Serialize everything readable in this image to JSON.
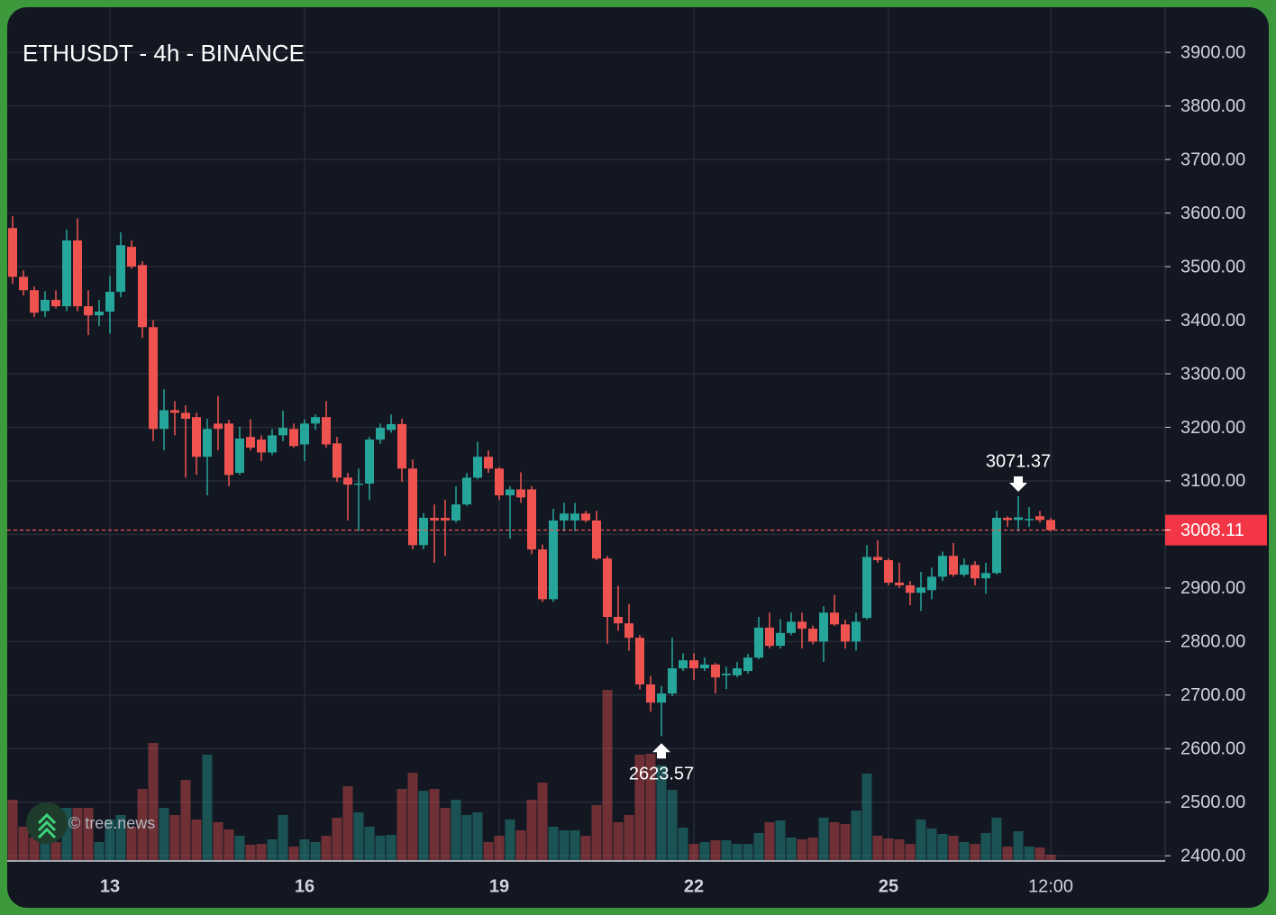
{
  "chart_data": {
    "type": "candlestick",
    "title": "ETHUSDT - 4h - BINANCE",
    "watermark": "© tree.news",
    "categories": [
      null,
      null,
      null,
      null,
      null,
      null,
      null,
      null,
      null,
      "13",
      null,
      null,
      null,
      null,
      null,
      null,
      null,
      null,
      null,
      null,
      null,
      null,
      null,
      null,
      null,
      null,
      null,
      "16",
      null,
      null,
      null,
      null,
      null,
      null,
      null,
      null,
      null,
      null,
      null,
      null,
      null,
      null,
      null,
      null,
      null,
      "19",
      null,
      null,
      null,
      null,
      null,
      null,
      null,
      null,
      null,
      null,
      null,
      null,
      null,
      null,
      null,
      null,
      null,
      "22",
      null,
      null,
      null,
      null,
      null,
      null,
      null,
      null,
      null,
      null,
      null,
      null,
      null,
      null,
      null,
      null,
      null,
      "25",
      null,
      null,
      null,
      null,
      null,
      null,
      null,
      null,
      null,
      null,
      null,
      null,
      null,
      null,
      "12:00"
    ],
    "open": [
      3572,
      3481,
      3456,
      3417,
      3438,
      3426,
      3549,
      3426,
      3409,
      3416,
      3453,
      3537,
      3503,
      3387,
      3197,
      3232,
      3227,
      3219,
      3145,
      3207,
      3207,
      3115,
      3182,
      3177,
      3153,
      3185,
      3197,
      3168,
      3207,
      3219,
      3170,
      3106,
      3093,
      3095,
      3177,
      3195,
      3206,
      3123,
      2980,
      3031,
      3031,
      3026,
      3056,
      3106,
      3145,
      3123,
      3073,
      3084,
      3084,
      2972,
      2879,
      3026,
      3026,
      3039,
      3026,
      2955,
      2846,
      2834,
      2807,
      2720,
      2686,
      2703,
      2750,
      2765,
      2750,
      2757,
      2737,
      2737,
      2745,
      2770,
      2826,
      2792,
      2816,
      2837,
      2824,
      2800,
      2854,
      2832,
      2800,
      2844,
      2958,
      2952,
      2910,
      2905,
      2891,
      2896,
      2921,
      2960,
      2925,
      2943,
      2918,
      2928,
      3031,
      3027,
      3027,
      3034,
      3027
    ],
    "high": [
      3594,
      3493,
      3463,
      3454,
      3456,
      3569,
      3590,
      3456,
      3438,
      3482,
      3564,
      3549,
      3510,
      3400,
      3271,
      3249,
      3241,
      3227,
      3216,
      3258,
      3214,
      3201,
      3215,
      3185,
      3197,
      3231,
      3207,
      3215,
      3224,
      3249,
      3182,
      3115,
      3123,
      3182,
      3207,
      3224,
      3216,
      3140,
      3040,
      3056,
      3065,
      3090,
      3115,
      3173,
      3157,
      3126,
      3090,
      3116,
      3090,
      2981,
      3048,
      3059,
      3059,
      3044,
      3044,
      2960,
      2904,
      2870,
      2812,
      2736,
      2717,
      2807,
      2778,
      2778,
      2770,
      2760,
      2753,
      2762,
      2777,
      2846,
      2854,
      2842,
      2854,
      2854,
      2830,
      2866,
      2887,
      2841,
      2854,
      2980,
      2989,
      2955,
      2947,
      2913,
      2930,
      2938,
      2968,
      2984,
      2955,
      2950,
      2947,
      3044,
      3034,
      3071.37,
      3051,
      3044,
      3031
    ],
    "low": [
      3468,
      3446,
      3406,
      3406,
      3422,
      3417,
      3417,
      3372,
      3389,
      3375,
      3443,
      3496,
      3367,
      3174,
      3157,
      3185,
      3106,
      3111,
      3073,
      3157,
      3090,
      3111,
      3157,
      3137,
      3148,
      3174,
      3162,
      3137,
      3195,
      3162,
      3098,
      3026,
      3006,
      3064,
      3169,
      3190,
      3098,
      2972,
      2972,
      2947,
      2960,
      3022,
      3053,
      3103,
      3115,
      3064,
      2992,
      3059,
      2963,
      2874,
      2874,
      3006,
      3006,
      3022,
      2952,
      2796,
      2820,
      2783,
      2711,
      2669,
      2623.57,
      2698,
      2745,
      2728,
      2745,
      2703,
      2711,
      2733,
      2740,
      2767,
      2787,
      2787,
      2812,
      2787,
      2795,
      2762,
      2829,
      2787,
      2783,
      2841,
      2947,
      2905,
      2900,
      2868,
      2857,
      2879,
      2913,
      2921,
      2921,
      2905,
      2889,
      2925,
      3014,
      3006,
      3014,
      3022,
      3006
    ],
    "close": [
      3481,
      3456,
      3414,
      3438,
      3426,
      3549,
      3426,
      3409,
      3416,
      3453,
      3540,
      3500,
      3387,
      3197,
      3232,
      3227,
      3216,
      3145,
      3197,
      3197,
      3111,
      3179,
      3162,
      3153,
      3185,
      3199,
      3165,
      3207,
      3219,
      3168,
      3106,
      3093,
      3095,
      3177,
      3199,
      3206,
      3123,
      2980,
      3031,
      3026,
      3026,
      3056,
      3106,
      3145,
      3123,
      3073,
      3084,
      3069,
      2972,
      2879,
      3026,
      3039,
      3039,
      3026,
      2955,
      2846,
      2834,
      2807,
      2720,
      2686,
      2703,
      2750,
      2765,
      2750,
      2757,
      2733,
      2740,
      2750,
      2770,
      2826,
      2792,
      2816,
      2837,
      2824,
      2800,
      2854,
      2832,
      2800,
      2837,
      2958,
      2952,
      2910,
      2905,
      2891,
      2901,
      2921,
      2960,
      2925,
      2943,
      2918,
      2928,
      3031,
      3027,
      3032,
      3029,
      3027,
      3008.11
    ],
    "volume": [
      67,
      37,
      25,
      20,
      20,
      58,
      58,
      58,
      20,
      45,
      50,
      37,
      79,
      130,
      58,
      50,
      89,
      45,
      117,
      42,
      34,
      27,
      17,
      18,
      23,
      50,
      15,
      23,
      20,
      27,
      47,
      82,
      53,
      37,
      27,
      28,
      79,
      97,
      77,
      79,
      58,
      67,
      50,
      53,
      20,
      27,
      45,
      33,
      67,
      86,
      37,
      33,
      33,
      27,
      61,
      189,
      42,
      50,
      117,
      118,
      105,
      78,
      36,
      18,
      20,
      22,
      22,
      18,
      18,
      30,
      42,
      44,
      25,
      23,
      25,
      47,
      42,
      40,
      55,
      96,
      27,
      24,
      23,
      18,
      45,
      35,
      29,
      27,
      20,
      18,
      30,
      47,
      15,
      32,
      15,
      14,
      6
    ],
    "up_color": "#26a69a",
    "down_color": "#ef5350",
    "last_price": 3008.11,
    "markers": [
      {
        "value": 3071.37,
        "at": "high"
      },
      {
        "value": 2623.57,
        "at": "low"
      }
    ],
    "ylim": [
      2392,
      3981
    ],
    "yticks": [
      {
        "value": 2400,
        "label": "2400.00"
      },
      {
        "value": 2500,
        "label": "2500.00"
      },
      {
        "value": 2600,
        "label": "2600.00"
      },
      {
        "value": 2700,
        "label": "2700.00"
      },
      {
        "value": 2800,
        "label": "2800.00"
      },
      {
        "value": 2900,
        "label": "2900.00"
      },
      {
        "value": 3000,
        "label": "3000.00"
      },
      {
        "value": 3100,
        "label": "3100.00"
      },
      {
        "value": 3200,
        "label": "3200.00"
      },
      {
        "value": 3300,
        "label": "3300.00"
      },
      {
        "value": 3400,
        "label": "3400.00"
      },
      {
        "value": 3500,
        "label": "3500.00"
      },
      {
        "value": 3600,
        "label": "3600.00"
      },
      {
        "value": 3700,
        "label": "3700.00"
      },
      {
        "value": 3800,
        "label": "3800.00"
      },
      {
        "value": 3900,
        "label": "3900.00"
      }
    ],
    "grid": true
  }
}
